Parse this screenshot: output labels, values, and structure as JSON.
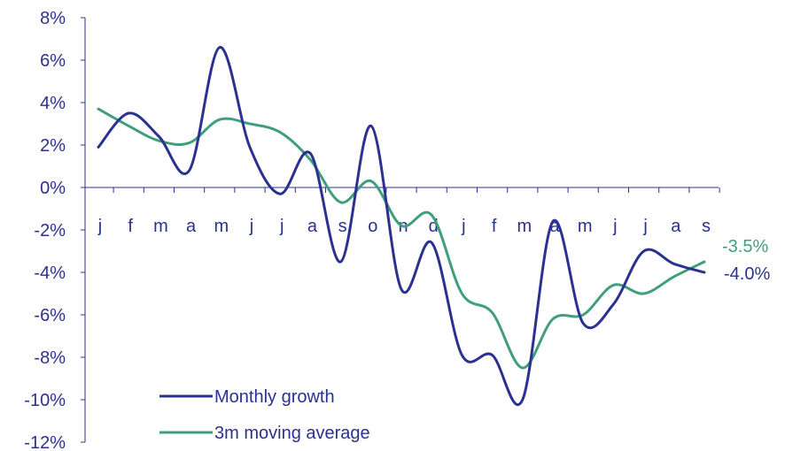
{
  "chart_data": {
    "type": "line",
    "x": [
      "j",
      "f",
      "m",
      "a",
      "m",
      "j",
      "j",
      "a",
      "s",
      "o",
      "n",
      "d",
      "j",
      "f",
      "m",
      "a",
      "m",
      "j",
      "j",
      "a",
      "s"
    ],
    "ylim": [
      -12,
      8
    ],
    "yticks": [
      8,
      6,
      4,
      2,
      0,
      -2,
      -4,
      -6,
      -8,
      -10,
      -12
    ],
    "ytick_labels": [
      "8%",
      "6%",
      "4%",
      "2%",
      "0%",
      "-2%",
      "-4%",
      "-6%",
      "-8%",
      "-10%",
      "-12%"
    ],
    "series": [
      {
        "name": "Monthly growth",
        "color": "#2b3190",
        "values": [
          1.9,
          3.5,
          2.4,
          0.8,
          6.6,
          1.9,
          -0.3,
          1.6,
          -3.5,
          2.9,
          -4.8,
          -2.6,
          -7.9,
          -7.9,
          -10.0,
          -1.6,
          -6.4,
          -5.5,
          -3.0,
          -3.6,
          -4.0
        ],
        "end_label": "-4.0%"
      },
      {
        "name": "3m moving average",
        "color": "#3f9f7c",
        "values": [
          3.7,
          2.9,
          2.2,
          2.1,
          3.2,
          3.0,
          2.6,
          1.3,
          -0.7,
          0.3,
          -1.8,
          -1.3,
          -5.0,
          -5.9,
          -8.5,
          -6.2,
          -6.0,
          -4.6,
          -5.0,
          -4.2,
          -3.5
        ],
        "end_label": "-3.5%"
      }
    ],
    "legend_position": "bottom-left",
    "grid": false
  }
}
